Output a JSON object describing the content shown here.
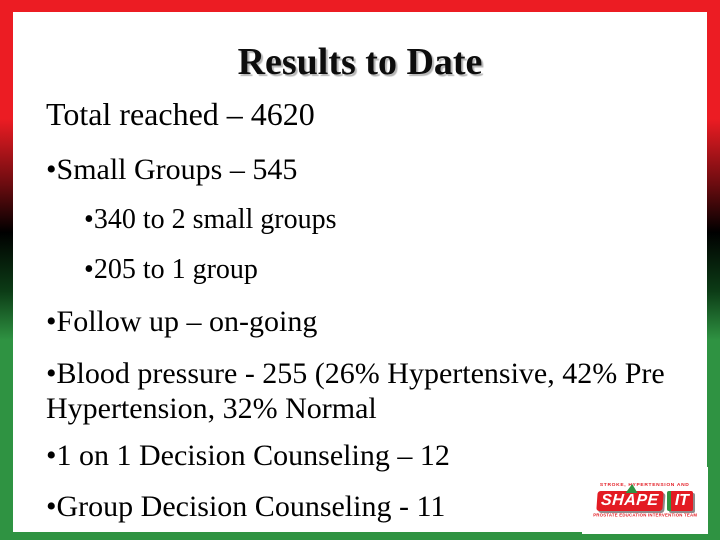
{
  "slide": {
    "title": "Results to Date",
    "subtitle": "Total reached – 4620",
    "bullet_char": "•",
    "bullets": [
      {
        "indent": 1,
        "text": "Small Groups – 545"
      },
      {
        "indent": 2,
        "text": "340 to 2 small groups"
      },
      {
        "indent": 2,
        "text": "205 to 1 group"
      },
      {
        "indent": 1,
        "text": "Follow up – on-going"
      },
      {
        "indent": 1,
        "text": "Blood pressure  - 255 (26% Hypertensive, 42% Pre Hypertension, 32% Normal"
      },
      {
        "indent": 1,
        "text": "1 on 1 Decision Counseling – 12"
      },
      {
        "indent": 1,
        "text": "Group Decision Counseling - 11"
      }
    ]
  },
  "logo": {
    "top_text": "STROKE, HYPERTENSION AND",
    "word1": "SHAPE",
    "word2": "IT",
    "bottom_text": "PROSTATE EDUCATION INTERVENTION TEAM"
  },
  "colors": {
    "border_red": "#EC1C23",
    "border_green": "#2F9342",
    "logo_red": "#E31B23",
    "logo_green": "#2F9342",
    "title_text": "#0d0d0d",
    "body_text": "#000000"
  }
}
